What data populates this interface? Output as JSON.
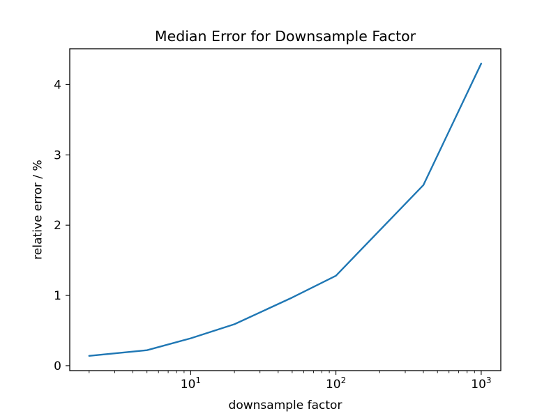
{
  "figure": {
    "background": "#ffffff",
    "text_color": "#000000"
  },
  "chart_data": {
    "type": "line",
    "title": "Median Error for Downsample Factor",
    "xlabel": "downsample factor",
    "ylabel": "relative error / %",
    "xscale": "log",
    "yscale": "linear",
    "x": [
      2,
      5,
      10,
      20,
      50,
      100,
      400,
      1000
    ],
    "y": [
      0.14,
      0.22,
      0.39,
      0.59,
      0.97,
      1.28,
      2.57,
      4.3
    ],
    "xlim": [
      1.47,
      1365
    ],
    "ylim": [
      -0.07,
      4.51
    ],
    "xticks": [
      {
        "value": 10,
        "base": "10",
        "exp": "1"
      },
      {
        "value": 100,
        "base": "10",
        "exp": "2"
      },
      {
        "value": 1000,
        "base": "10",
        "exp": "3"
      }
    ],
    "xticks_minor": [
      2,
      3,
      4,
      5,
      6,
      7,
      8,
      9,
      20,
      30,
      40,
      50,
      60,
      70,
      80,
      90,
      200,
      300,
      400,
      500,
      600,
      700,
      800,
      900
    ],
    "yticks": [
      0,
      1,
      2,
      3,
      4
    ],
    "line_color": "#1f77b4",
    "spine_color": "#000000",
    "grid": false,
    "legend": null,
    "markers": "none"
  }
}
